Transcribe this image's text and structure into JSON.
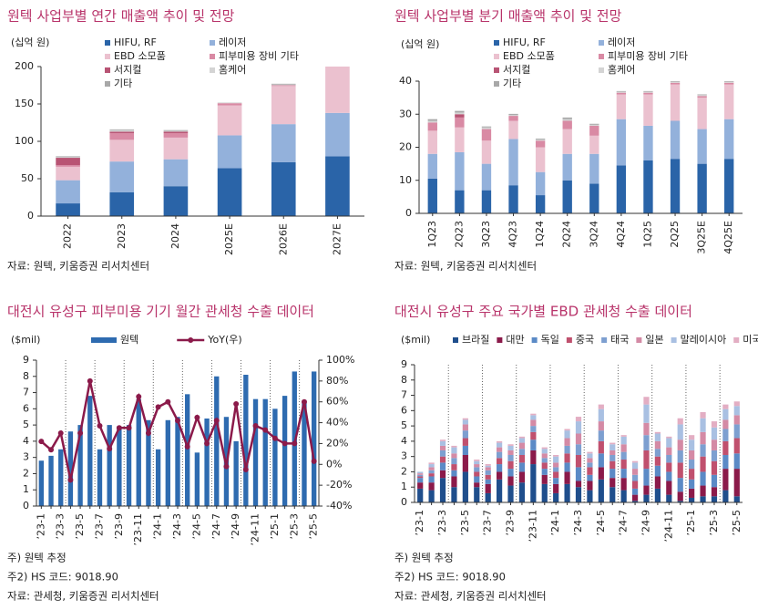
{
  "chart_data": [
    {
      "type": "stacked_bar",
      "title": "원텍 사업부별 연간 매출액 추이 및 전망",
      "y_label": "(십억 원)",
      "categories": [
        "2022",
        "2023",
        "2024",
        "2025E",
        "2026E",
        "2027E"
      ],
      "series": [
        {
          "name": "HIFU, RF",
          "color": "#2a64a8",
          "values": [
            17,
            32,
            40,
            64,
            72,
            80
          ]
        },
        {
          "name": "레이저",
          "color": "#93b1db",
          "values": [
            31,
            41,
            36,
            44,
            51,
            58
          ]
        },
        {
          "name": "EBD 소모품",
          "color": "#ebc1cf",
          "values": [
            18,
            29,
            29,
            40,
            51,
            62
          ]
        },
        {
          "name": "피부미용 장비 기타",
          "color": "#d98aa4",
          "values": [
            2,
            9,
            6,
            3,
            1,
            0
          ]
        },
        {
          "name": "서지컬",
          "color": "#b85474",
          "values": [
            10,
            2,
            2,
            0,
            0,
            0
          ]
        },
        {
          "name": "홈케어",
          "color": "#d4d4d4",
          "values": [
            1,
            2,
            1,
            1,
            1,
            0
          ]
        },
        {
          "name": "기타",
          "color": "#a8a8a8",
          "values": [
            1,
            1,
            1,
            0,
            1,
            0
          ]
        }
      ],
      "ylim": [
        0,
        200
      ],
      "yticks": [
        0,
        50,
        100,
        150,
        200
      ],
      "notes": [
        "자료: 원텍, 키움증권 리서치센터"
      ]
    },
    {
      "type": "stacked_bar",
      "title": "원텍 사업부별 분기 매출액 추이 및 전망",
      "y_label": "(십억 원)",
      "categories": [
        "1Q23",
        "2Q23",
        "3Q23",
        "4Q23",
        "1Q24",
        "2Q24",
        "3Q24",
        "4Q24",
        "1Q25",
        "2Q25",
        "3Q25E",
        "4Q25E"
      ],
      "series": [
        {
          "name": "HIFU, RF",
          "color": "#2a64a8",
          "values": [
            10.5,
            7,
            7,
            8.5,
            5.5,
            10,
            9,
            14.5,
            16,
            16.5,
            15,
            16.5
          ]
        },
        {
          "name": "레이저",
          "color": "#93b1db",
          "values": [
            7.5,
            11.5,
            8,
            14,
            7,
            8,
            9,
            14,
            10.5,
            11.5,
            10.5,
            12
          ]
        },
        {
          "name": "EBD 소모품",
          "color": "#ebc1cf",
          "values": [
            7,
            7.5,
            7,
            5.5,
            7.5,
            7.5,
            5.5,
            7.5,
            9.5,
            11,
            9.5,
            10.5
          ]
        },
        {
          "name": "피부미용 장비 기타",
          "color": "#d98aa4",
          "values": [
            2.5,
            3,
            3.5,
            1.5,
            2,
            2.5,
            3,
            0.5,
            0.5,
            0.5,
            0.5,
            0.5
          ]
        },
        {
          "name": "서지컬",
          "color": "#b85474",
          "values": [
            0,
            1,
            0,
            0,
            0,
            0,
            0,
            0,
            0,
            0,
            0,
            0
          ]
        },
        {
          "name": "홈케어",
          "color": "#d4d4d4",
          "values": [
            0.5,
            0.5,
            0.5,
            0.3,
            0.3,
            0.5,
            0.3,
            0.3,
            0.3,
            0.3,
            0.3,
            0.3
          ]
        },
        {
          "name": "기타",
          "color": "#a8a8a8",
          "values": [
            0.5,
            0.5,
            0.3,
            0.3,
            0.3,
            0.5,
            0.3,
            0.2,
            0.2,
            0.2,
            0.2,
            0.2
          ]
        }
      ],
      "ylim": [
        0,
        40
      ],
      "yticks": [
        0,
        10,
        20,
        30,
        40
      ],
      "notes": [
        "자료: 원텍, 키움증권 리서치센터"
      ]
    },
    {
      "type": "bar_line",
      "title": "대전시 유성구 피부미용 기기 월간 관세청 수출 데이터",
      "y_label": "($mil)",
      "categories": [
        "’23-1",
        null,
        "’23-3",
        null,
        "’23-5",
        null,
        "’23-7",
        null,
        "’23-9",
        null,
        "’23-11",
        null,
        "’24-1",
        null,
        "’24-3",
        null,
        "’24-5",
        null,
        "’24-7",
        null,
        "’24-9",
        null,
        "’24-11",
        null,
        "’25-1",
        null,
        "’25-3",
        null,
        "’25-5"
      ],
      "series": [
        {
          "name": "원텍",
          "color": "#2e6bb0",
          "values": [
            2.8,
            3.1,
            3.5,
            4.6,
            5.0,
            6.8,
            3.5,
            5.0,
            4.9,
            5.0,
            6.6,
            5.3,
            3.5,
            5.3,
            5.5,
            6.9,
            3.3,
            5.4,
            8.0,
            5.5,
            4.0,
            8.1,
            6.6,
            6.6,
            6.0,
            6.8,
            8.3,
            6.5,
            8.3
          ]
        },
        {
          "name": "YoY(우)",
          "color": "#8b1a4a",
          "axis": "y2",
          "values": [
            22,
            14,
            30,
            -15,
            30,
            80,
            37,
            15,
            35,
            35,
            65,
            30,
            55,
            60,
            42,
            17,
            45,
            20,
            42,
            -2,
            58,
            -5,
            37,
            33,
            25,
            20,
            20,
            60,
            3
          ]
        }
      ],
      "ylim": [
        0,
        9
      ],
      "yticks": [
        0,
        1,
        2,
        3,
        4,
        5,
        6,
        7,
        8,
        9
      ],
      "y2lim": [
        -40,
        100
      ],
      "y2ticks": [
        {
          "value": -40,
          "label": "-40%"
        },
        {
          "value": -20,
          "label": "-20%"
        },
        {
          "value": 0,
          "label": "0%"
        },
        {
          "value": 20,
          "label": "20%"
        },
        {
          "value": 40,
          "label": "40%"
        },
        {
          "value": 60,
          "label": "60%"
        },
        {
          "value": 80,
          "label": "80%"
        },
        {
          "value": 100,
          "label": "100%"
        }
      ],
      "notes": [
        "주) 원텍 추정",
        "주2) HS 코드: 9018.90",
        "자료: 관세청, 키움증권 리서치센터"
      ]
    },
    {
      "type": "stacked_bar",
      "title": "대전시 유성구 주요 국가별 EBD 관세청 수출 데이터",
      "y_label": "($mil)",
      "categories": [
        "’23-1",
        null,
        "’23-3",
        null,
        "’23-5",
        null,
        "’23-7",
        null,
        "’23-9",
        null,
        "’23-11",
        null,
        "’24-1",
        null,
        "’24-3",
        null,
        "’24-5",
        null,
        "’24-7",
        null,
        "’24-9",
        null,
        "’24-11",
        null,
        "’25-1",
        null,
        "’25-3",
        null,
        "’25-5"
      ],
      "series": [
        {
          "name": "브라질",
          "color": "#1f4e8c",
          "values": [
            0.9,
            0.8,
            1.6,
            1.0,
            2.0,
            1.0,
            0.6,
            1.5,
            1.1,
            1.3,
            2.5,
            1.2,
            0.6,
            1.2,
            1.0,
            0.8,
            1.5,
            1.0,
            0.8,
            0.1,
            0.5,
            0.9,
            0.5,
            0.1,
            0.3,
            0.4,
            0.4,
            0.8,
            0.4
          ]
        },
        {
          "name": "대만",
          "color": "#8b1a4a",
          "values": [
            0.4,
            0.5,
            0.5,
            0.7,
            1.1,
            0.3,
            0.6,
            0.5,
            0.6,
            0.7,
            0.9,
            0.6,
            0.6,
            0.8,
            0.4,
            0.6,
            0.8,
            0.6,
            0.8,
            0.4,
            0.6,
            0.8,
            0.9,
            0.6,
            0.6,
            0.7,
            0.6,
            1.4,
            1.8
          ]
        },
        {
          "name": "독일",
          "color": "#5b8ac6",
          "values": [
            0.3,
            0.4,
            0.5,
            0.4,
            0.6,
            0.4,
            0.3,
            0.5,
            0.5,
            0.6,
            0.7,
            0.4,
            0.4,
            0.6,
            0.9,
            0.4,
            0.9,
            0.6,
            0.6,
            0.4,
            1.1,
            0.7,
            0.6,
            0.9,
            0.6,
            0.9,
            0.8,
            0.9,
            1.0
          ]
        },
        {
          "name": "중국",
          "color": "#c0506e",
          "values": [
            0.1,
            0.2,
            0.4,
            0.4,
            0.5,
            0.3,
            0.3,
            0.4,
            0.5,
            0.5,
            0.5,
            0.4,
            0.4,
            0.6,
            0.8,
            0.5,
            0.8,
            0.5,
            0.6,
            0.5,
            1.2,
            0.6,
            0.6,
            1.0,
            0.7,
            1.0,
            0.9,
            0.9,
            1.0
          ]
        },
        {
          "name": "태국",
          "color": "#7d9fd0",
          "values": [
            0.1,
            0.2,
            0.4,
            0.4,
            0.5,
            0.3,
            0.3,
            0.4,
            0.4,
            0.4,
            0.4,
            0.3,
            0.3,
            0.5,
            0.7,
            0.3,
            0.7,
            0.4,
            0.5,
            0.4,
            1.0,
            0.5,
            0.5,
            0.8,
            0.6,
            0.8,
            0.7,
            0.8,
            0.9
          ]
        },
        {
          "name": "일본",
          "color": "#d48aa5",
          "values": [
            0.1,
            0.2,
            0.3,
            0.3,
            0.4,
            0.2,
            0.2,
            0.3,
            0.3,
            0.4,
            0.4,
            0.3,
            0.3,
            0.5,
            0.7,
            0.3,
            0.6,
            0.3,
            0.5,
            0.4,
            0.8,
            0.5,
            0.5,
            0.7,
            0.6,
            0.8,
            0.7,
            0.6,
            0.6
          ]
        },
        {
          "name": "말레이시아",
          "color": "#a9c0e2",
          "values": [
            0.1,
            0.2,
            0.3,
            0.4,
            0.3,
            0.2,
            0.1,
            0.3,
            0.3,
            0.3,
            0.3,
            0.3,
            0.4,
            0.5,
            0.8,
            0.3,
            0.8,
            0.4,
            0.5,
            0.4,
            1.2,
            0.5,
            0.6,
            1.0,
            0.7,
            0.9,
            0.8,
            0.7,
            0.6
          ]
        },
        {
          "name": "미국",
          "color": "#e3aec3",
          "values": [
            0.0,
            0.1,
            0.1,
            0.1,
            0.1,
            0.1,
            0.1,
            0.1,
            0.1,
            0.1,
            0.1,
            0.1,
            0.1,
            0.1,
            0.3,
            0.1,
            0.3,
            0.1,
            0.1,
            0.1,
            0.5,
            0.1,
            0.1,
            0.4,
            0.3,
            0.4,
            0.4,
            0.3,
            0.3
          ]
        }
      ],
      "ylim": [
        0,
        9
      ],
      "yticks": [
        0,
        1,
        2,
        3,
        4,
        5,
        6,
        7,
        8,
        9
      ],
      "notes": [
        "주) 원텍 추정",
        "주2) HS 코드: 9018.90",
        "자료: 관세청, 키움증권 리서치센터"
      ]
    }
  ]
}
